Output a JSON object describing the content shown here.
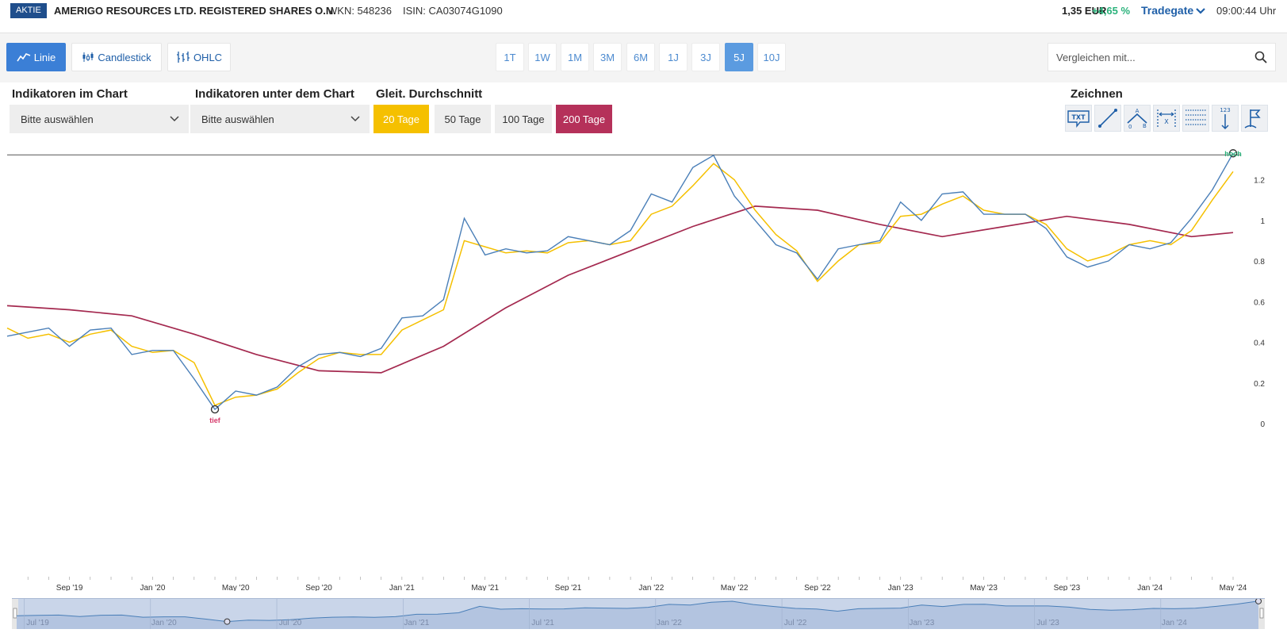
{
  "header": {
    "badge": "AKTIE",
    "name": "AMERIGO RESOURCES LTD. REGISTERED SHARES O.N.",
    "wkn": "WKN: 548236",
    "isin": "ISIN: CA03074G1090",
    "price": "1,35 EUR",
    "change": "+4,65 %",
    "exchange": "Tradegate",
    "time": "09:00:44 Uhr"
  },
  "chart_types": [
    {
      "label": "Linie",
      "icon": "line-chart-icon",
      "active": true
    },
    {
      "label": "Candlestick",
      "icon": "candlestick-icon",
      "active": false
    },
    {
      "label": "OHLC",
      "icon": "ohlc-icon",
      "active": false
    }
  ],
  "periods": [
    "1T",
    "1W",
    "1M",
    "3M",
    "6M",
    "1J",
    "3J",
    "5J",
    "10J"
  ],
  "active_period": "5J",
  "compare": {
    "placeholder": "Vergleichen mit..."
  },
  "indicators": {
    "in_chart_label": "Indikatoren im Chart",
    "under_chart_label": "Indikatoren unter dem Chart",
    "select_placeholder": "Bitte auswählen",
    "ma_label": "Gleit. Durchschnitt",
    "ma_buttons": [
      {
        "label": "20 Tage",
        "active": true,
        "color": "#f5c000"
      },
      {
        "label": "50 Tage",
        "active": false
      },
      {
        "label": "100 Tage",
        "active": false
      },
      {
        "label": "200 Tage",
        "active": true,
        "color": "#b5315a"
      }
    ],
    "draw_label": "Zeichnen",
    "draw_tools": [
      "text-tool-icon",
      "line-tool-icon",
      "triangle-abc-tool-icon",
      "width-measure-tool-icon",
      "grid-lines-tool-icon",
      "value-arrow-tool-icon",
      "flag-tool-icon"
    ],
    "draw_tool_texts": {
      "txt": "TXT",
      "a": "A",
      "b": "B",
      "zero": "0",
      "x": "X",
      "num": "123"
    }
  },
  "chart_data": {
    "type": "line",
    "x_ticks": [
      "Sep '19",
      "Jan '20",
      "May '20",
      "Sep '20",
      "Jan '21",
      "May '21",
      "Sep '21",
      "Jan '22",
      "May '22",
      "Sep '22",
      "Jan '23",
      "May '23",
      "Sep '23",
      "Jan '24",
      "May '24"
    ],
    "y_ticks": [
      "0",
      "0.2",
      "0.4",
      "0.6",
      "0.8",
      "1",
      "1.2"
    ],
    "ylim": [
      0,
      1.37
    ],
    "xlim": [
      "2019-06",
      "2024-05"
    ],
    "annotations": {
      "high": "hoch",
      "low": "tief"
    },
    "navigator_ticks": [
      "Jul '19",
      "Jan '20",
      "Jul '20",
      "Jan '21",
      "Jul '21",
      "Jan '22",
      "Jul '22",
      "Jan '23",
      "Jul '23",
      "Jan '24"
    ],
    "colors": {
      "price": "#4a7fb8",
      "ma20": "#f5c000",
      "ma200": "#a4294f",
      "high": "#2ab27b",
      "low": "#d63a6b"
    },
    "series": [
      {
        "name": "price",
        "x": [
          "2019-06",
          "2019-07",
          "2019-08",
          "2019-09",
          "2019-10",
          "2019-11",
          "2019-12",
          "2020-01",
          "2020-02",
          "2020-03",
          "2020-04",
          "2020-05",
          "2020-06",
          "2020-07",
          "2020-08",
          "2020-09",
          "2020-10",
          "2020-11",
          "2020-12",
          "2021-01",
          "2021-02",
          "2021-03",
          "2021-04",
          "2021-05",
          "2021-06",
          "2021-07",
          "2021-08",
          "2021-09",
          "2021-10",
          "2021-11",
          "2021-12",
          "2022-01",
          "2022-02",
          "2022-03",
          "2022-04",
          "2022-05",
          "2022-06",
          "2022-07",
          "2022-08",
          "2022-09",
          "2022-10",
          "2022-11",
          "2022-12",
          "2023-01",
          "2023-02",
          "2023-03",
          "2023-04",
          "2023-05",
          "2023-06",
          "2023-07",
          "2023-08",
          "2023-09",
          "2023-10",
          "2023-11",
          "2023-12",
          "2024-01",
          "2024-02",
          "2024-03",
          "2024-04",
          "2024-05"
        ],
        "values": [
          0.43,
          0.45,
          0.47,
          0.38,
          0.46,
          0.47,
          0.34,
          0.36,
          0.36,
          0.22,
          0.07,
          0.16,
          0.14,
          0.18,
          0.28,
          0.34,
          0.35,
          0.33,
          0.37,
          0.52,
          0.53,
          0.61,
          1.01,
          0.83,
          0.86,
          0.84,
          0.85,
          0.92,
          0.9,
          0.88,
          0.95,
          1.13,
          1.09,
          1.26,
          1.32,
          1.12,
          1.0,
          0.88,
          0.84,
          0.71,
          0.86,
          0.88,
          0.9,
          1.09,
          1.0,
          1.13,
          1.14,
          1.03,
          1.03,
          1.03,
          0.96,
          0.82,
          0.77,
          0.8,
          0.88,
          0.86,
          0.89,
          1.01,
          1.15,
          1.33
        ]
      },
      {
        "name": "ma20",
        "x": [
          "2019-06",
          "2019-07",
          "2019-08",
          "2019-09",
          "2019-10",
          "2019-11",
          "2019-12",
          "2020-01",
          "2020-02",
          "2020-03",
          "2020-04",
          "2020-05",
          "2020-06",
          "2020-07",
          "2020-08",
          "2020-09",
          "2020-10",
          "2020-11",
          "2020-12",
          "2021-01",
          "2021-02",
          "2021-03",
          "2021-04",
          "2021-05",
          "2021-06",
          "2021-07",
          "2021-08",
          "2021-09",
          "2021-10",
          "2021-11",
          "2021-12",
          "2022-01",
          "2022-02",
          "2022-03",
          "2022-04",
          "2022-05",
          "2022-06",
          "2022-07",
          "2022-08",
          "2022-09",
          "2022-10",
          "2022-11",
          "2022-12",
          "2023-01",
          "2023-02",
          "2023-03",
          "2023-04",
          "2023-05",
          "2023-06",
          "2023-07",
          "2023-08",
          "2023-09",
          "2023-10",
          "2023-11",
          "2023-12",
          "2024-01",
          "2024-02",
          "2024-03",
          "2024-04",
          "2024-05"
        ],
        "values": [
          0.47,
          0.42,
          0.44,
          0.4,
          0.44,
          0.46,
          0.38,
          0.35,
          0.36,
          0.3,
          0.09,
          0.13,
          0.14,
          0.17,
          0.25,
          0.32,
          0.35,
          0.34,
          0.34,
          0.46,
          0.51,
          0.56,
          0.9,
          0.87,
          0.84,
          0.85,
          0.84,
          0.89,
          0.9,
          0.88,
          0.9,
          1.03,
          1.07,
          1.17,
          1.28,
          1.2,
          1.05,
          0.93,
          0.85,
          0.7,
          0.8,
          0.88,
          0.89,
          1.02,
          1.03,
          1.08,
          1.12,
          1.05,
          1.03,
          1.03,
          0.98,
          0.86,
          0.8,
          0.83,
          0.88,
          0.9,
          0.88,
          0.95,
          1.1,
          1.24
        ]
      },
      {
        "name": "ma200",
        "x": [
          "2019-06",
          "2019-09",
          "2019-12",
          "2020-03",
          "2020-06",
          "2020-09",
          "2020-12",
          "2021-03",
          "2021-06",
          "2021-09",
          "2021-12",
          "2022-03",
          "2022-06",
          "2022-09",
          "2022-12",
          "2023-03",
          "2023-06",
          "2023-09",
          "2023-12",
          "2024-03",
          "2024-05"
        ],
        "values": [
          0.58,
          0.56,
          0.53,
          0.44,
          0.34,
          0.26,
          0.25,
          0.38,
          0.57,
          0.73,
          0.85,
          0.97,
          1.07,
          1.05,
          0.98,
          0.92,
          0.97,
          1.02,
          0.98,
          0.92,
          0.94
        ]
      }
    ]
  }
}
